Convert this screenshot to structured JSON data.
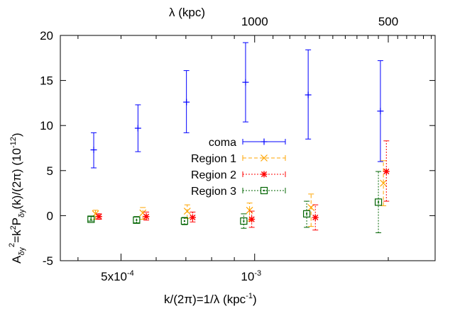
{
  "chart_data": {
    "type": "scatter",
    "title": "",
    "xlabel": {
      "main": "k/(2π)=1/λ (kpc",
      "sup": "-1",
      "close": ")"
    },
    "x2label": "λ (kpc)",
    "ylabel": {
      "main": "A",
      "sub1": "δy",
      "sup2": "2",
      "mid": "=k",
      "sup3": "2",
      "p": "P",
      "sub4": "δy",
      "tail": "(k)/(2π) (10",
      "sup5": "-12",
      "close": ")"
    },
    "xscale": "log",
    "xlim": [
      0.000365,
      0.00255
    ],
    "ylim": [
      -5,
      20
    ],
    "y_ticks": [
      -5,
      0,
      5,
      10,
      15,
      20
    ],
    "y_tick_labels": [
      "-5",
      "0",
      "5",
      "10",
      "15",
      "20"
    ],
    "x_ticks": [
      {
        "value": 0.0005,
        "label_main": "5x10",
        "label_sup": "-4"
      },
      {
        "value": 0.001,
        "label_main": "10",
        "label_sup": "-3"
      }
    ],
    "x2_ticks": [
      {
        "value": 0.001,
        "label": "1000"
      },
      {
        "value": 0.002,
        "label": "500"
      }
    ],
    "legend_position": "center",
    "series": [
      {
        "name": "coma",
        "color": "#0000ff",
        "marker": "plus",
        "line_style": "solid",
        "points": [
          {
            "x": 0.000434,
            "y": 7.3,
            "lo": 5.3,
            "hi": 9.2
          },
          {
            "x": 0.000546,
            "y": 9.7,
            "lo": 7.1,
            "hi": 12.3
          },
          {
            "x": 0.000702,
            "y": 12.6,
            "lo": 9.2,
            "hi": 16.1
          },
          {
            "x": 0.000954,
            "y": 14.8,
            "lo": 10.4,
            "hi": 19.2
          },
          {
            "x": 0.00132,
            "y": 13.4,
            "lo": 8.5,
            "hi": 18.4
          },
          {
            "x": 0.00192,
            "y": 11.6,
            "lo": 6.0,
            "hi": 17.2
          }
        ]
      },
      {
        "name": "Region 1",
        "color": "#ffa500",
        "marker": "x",
        "line_style": "dashed",
        "points": [
          {
            "x": 0.000438,
            "y": 0.2,
            "lo": -0.4,
            "hi": 0.6
          },
          {
            "x": 0.00056,
            "y": 0.3,
            "lo": -0.4,
            "hi": 0.9
          },
          {
            "x": 0.000705,
            "y": 0.5,
            "lo": -0.3,
            "hi": 1.2
          },
          {
            "x": 0.000974,
            "y": 0.6,
            "lo": -0.6,
            "hi": 1.4
          },
          {
            "x": 0.00134,
            "y": 0.9,
            "lo": -1.2,
            "hi": 2.4
          },
          {
            "x": 0.00195,
            "y": 3.6,
            "lo": 1.1,
            "hi": 6.1
          }
        ]
      },
      {
        "name": "Region 2",
        "color": "#ff0000",
        "marker": "star",
        "line_style": "dotted",
        "points": [
          {
            "x": 0.000446,
            "y": -0.1,
            "lo": -0.4,
            "hi": 0.2
          },
          {
            "x": 0.00057,
            "y": -0.1,
            "lo": -0.5,
            "hi": 0.4
          },
          {
            "x": 0.000725,
            "y": -0.2,
            "lo": -0.7,
            "hi": 0.4
          },
          {
            "x": 0.000985,
            "y": -0.4,
            "lo": -1.3,
            "hi": 0.5
          },
          {
            "x": 0.00137,
            "y": -0.2,
            "lo": -1.6,
            "hi": 1.2
          },
          {
            "x": 0.00198,
            "y": 4.9,
            "lo": 1.6,
            "hi": 8.3
          }
        ]
      },
      {
        "name": "Region 3",
        "color": "#006400",
        "marker": "square-dot",
        "line_style": "dotted",
        "points": [
          {
            "x": 0.000428,
            "y": -0.4,
            "lo": -0.6,
            "hi": -0.1
          },
          {
            "x": 0.000542,
            "y": -0.5,
            "lo": -0.8,
            "hi": -0.1
          },
          {
            "x": 0.000695,
            "y": -0.6,
            "lo": -1.0,
            "hi": -0.2
          },
          {
            "x": 0.000945,
            "y": -0.6,
            "lo": -1.4,
            "hi": 0.2
          },
          {
            "x": 0.00131,
            "y": 0.2,
            "lo": -1.3,
            "hi": 1.6
          },
          {
            "x": 0.0019,
            "y": 1.5,
            "lo": -1.9,
            "hi": 4.9
          }
        ]
      }
    ]
  }
}
